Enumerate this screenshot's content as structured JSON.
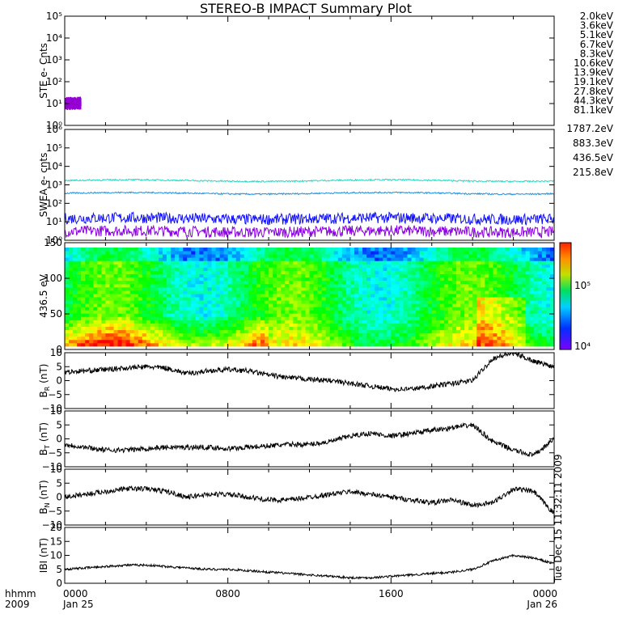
{
  "title": "STEREO-B IMPACT Summary Plot",
  "colors": {
    "frame": "#000000",
    "background": "#ffffff"
  },
  "footer": {
    "hhmm": "hhmm",
    "year": "2009",
    "timestamp": "Tue Dec 15 11:32:11 2009"
  },
  "chart_data": [
    {
      "id": "ste",
      "type": "line",
      "ylabel": "STE e- Cnts",
      "ylog": true,
      "ylim_exp": [
        0,
        5
      ],
      "yticks": [
        "10⁰",
        "10¹",
        "10²",
        "10³",
        "10⁴",
        "10⁵"
      ],
      "legend_placement": "right",
      "series": [
        {
          "name": "2.0keV",
          "color": "#9400d3",
          "typical": 10,
          "active_until": 0.8
        },
        {
          "name": "3.6keV",
          "color": "#5a0fc0"
        },
        {
          "name": "5.1keV",
          "color": "#1f3bff"
        },
        {
          "name": "6.7keV",
          "color": "#2aa8ff"
        },
        {
          "name": "8.3keV",
          "color": "#1ed6d6"
        },
        {
          "name": "10.6keV",
          "color": "#20c850"
        },
        {
          "name": "13.9keV",
          "color": "#30d000"
        },
        {
          "name": "19.1keV",
          "color": "#c8e000"
        },
        {
          "name": "27.8keV",
          "color": "#ffd000"
        },
        {
          "name": "44.3keV",
          "color": "#ff9000"
        },
        {
          "name": "81.1keV",
          "color": "#e03000"
        }
      ]
    },
    {
      "id": "swea",
      "type": "line",
      "ylabel": "SWEA e- cnts",
      "ylog": true,
      "ylim_exp": [
        0,
        6
      ],
      "yticks": [
        "10⁰",
        "10¹",
        "10²",
        "10³",
        "10⁴",
        "10⁵",
        "10⁶"
      ],
      "legend_placement": "right",
      "series": [
        {
          "name": "1787.2eV",
          "color": "#8a00e0",
          "typical": 3
        },
        {
          "name": "883.3eV",
          "color": "#1010ff",
          "typical": 15
        },
        {
          "name": "436.5eV",
          "color": "#1e90e0",
          "typical": 350
        },
        {
          "name": "215.8eV",
          "color": "#20d8c0",
          "typical": 1700
        }
      ]
    },
    {
      "id": "pad",
      "type": "heatmap",
      "ylabel": "436.5 eV",
      "ylim": [
        0,
        180
      ],
      "yticks": [
        "0",
        "50",
        "100",
        "150"
      ],
      "colorbar": {
        "scale": "log",
        "range": [
          10000,
          400000
        ],
        "ticks": [
          "10⁴",
          "10⁵"
        ]
      }
    },
    {
      "id": "br",
      "type": "line",
      "ylabel": "B",
      "ylabel_sub": "R",
      "ylabel_unit": " (nT)",
      "ylim": [
        -10,
        10
      ],
      "yticks": [
        "−10",
        "−5",
        "0",
        "5",
        "10"
      ],
      "x_hours": [
        0,
        1,
        2,
        3,
        4,
        5,
        6,
        7,
        8,
        9,
        10,
        11,
        12,
        13,
        14,
        15,
        16,
        17,
        18,
        19,
        20,
        21,
        22,
        23,
        24
      ],
      "values": [
        3,
        3.5,
        4,
        4.5,
        5,
        4.5,
        2.5,
        3.5,
        4,
        3.5,
        2,
        1,
        0.5,
        0,
        -1,
        -2,
        -3,
        -3,
        -2,
        -1,
        0,
        8,
        10,
        7,
        5
      ]
    },
    {
      "id": "bt",
      "type": "line",
      "ylabel": "B",
      "ylabel_sub": "T",
      "ylabel_unit": " (nT)",
      "ylim": [
        -10,
        10
      ],
      "yticks": [
        "−10",
        "−5",
        "0",
        "5",
        "10"
      ],
      "x_hours": [
        0,
        1,
        2,
        3,
        4,
        5,
        6,
        7,
        8,
        9,
        10,
        11,
        12,
        13,
        14,
        15,
        16,
        17,
        18,
        19,
        20,
        21,
        22,
        23,
        24
      ],
      "values": [
        -2,
        -3,
        -4,
        -4,
        -3.5,
        -3,
        -3,
        -3,
        -3.5,
        -3,
        -2.5,
        -2,
        -2,
        -1,
        1,
        2,
        1,
        2,
        3,
        4,
        5,
        -1,
        -4,
        -6,
        0
      ]
    },
    {
      "id": "bn",
      "type": "line",
      "ylabel": "B",
      "ylabel_sub": "N",
      "ylabel_unit": " (nT)",
      "ylim": [
        -10,
        10
      ],
      "yticks": [
        "−10",
        "−5",
        "0",
        "5",
        "10"
      ],
      "x_hours": [
        0,
        1,
        2,
        3,
        4,
        5,
        6,
        7,
        8,
        9,
        10,
        11,
        12,
        13,
        14,
        15,
        16,
        17,
        18,
        19,
        20,
        21,
        22,
        23,
        24
      ],
      "values": [
        0,
        1,
        2,
        3,
        3,
        2,
        0,
        1,
        1,
        0,
        -1,
        -1,
        0,
        1,
        2,
        1,
        0,
        -1,
        -2,
        -1,
        -3,
        -2,
        3,
        2,
        -6
      ]
    },
    {
      "id": "btot",
      "type": "line",
      "ylabel": "IBI (nT)",
      "ylim": [
        0,
        20
      ],
      "yticks": [
        "0",
        "5",
        "10",
        "15",
        "20"
      ],
      "x_hours": [
        0,
        1,
        2,
        3,
        4,
        5,
        6,
        7,
        8,
        9,
        10,
        11,
        12,
        13,
        14,
        15,
        16,
        17,
        18,
        19,
        20,
        21,
        22,
        23,
        24
      ],
      "values": [
        5,
        5.5,
        6,
        6.5,
        6.5,
        6,
        5.5,
        5,
        5,
        4.5,
        4,
        3.5,
        3,
        2.5,
        2,
        2,
        2.5,
        3,
        3.5,
        4,
        5,
        8,
        10,
        9,
        7
      ]
    }
  ],
  "x_axis": {
    "labels": [
      {
        "top": "0000",
        "bottom": "Jan 25"
      },
      {
        "top": "0800",
        "bottom": ""
      },
      {
        "top": "1600",
        "bottom": ""
      },
      {
        "top": "0000",
        "bottom": "Jan 26"
      }
    ],
    "hours": [
      0,
      8,
      16,
      24
    ]
  }
}
